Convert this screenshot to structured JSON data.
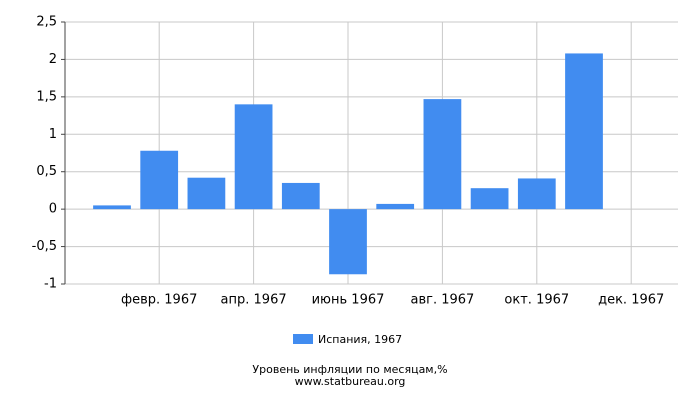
{
  "chart_data": {
    "type": "bar",
    "title": "Уровень инфляции по месяцам,%",
    "source": "www.statbureau.org",
    "categories": [
      null,
      "февр. 1967",
      null,
      "апр. 1967",
      null,
      "июнь 1967",
      null,
      "авг. 1967",
      null,
      "окт. 1967",
      null,
      "дек. 1967"
    ],
    "series": [
      {
        "name": "Испания, 1967",
        "color": "#418cf0",
        "values": [
          0.05,
          0.78,
          0.42,
          1.4,
          0.35,
          -0.87,
          0.07,
          1.47,
          0.28,
          0.41,
          2.08,
          null
        ]
      }
    ],
    "ylim": [
      -1,
      2.5
    ],
    "yticks": [
      -1,
      {
        "value": -0.5,
        "label": "-0,5"
      },
      0,
      {
        "value": 0.5,
        "label": "0,5"
      },
      1,
      {
        "value": 1.5,
        "label": "1,5"
      },
      2,
      {
        "value": 2.5,
        "label": "2,5"
      }
    ],
    "grid": true
  }
}
